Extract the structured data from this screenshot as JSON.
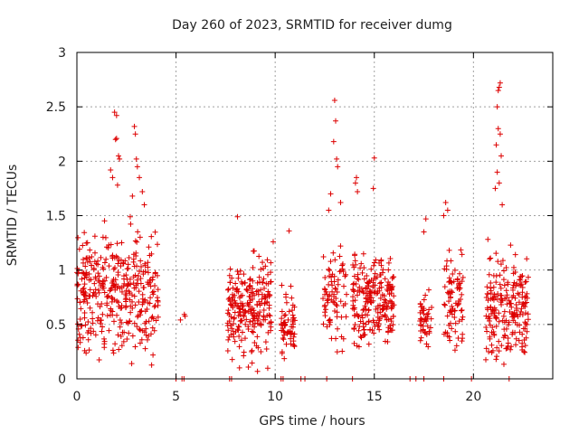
{
  "chart_data": {
    "type": "scatter",
    "title": "Day 260 of 2023, SRMTID for receiver dumg",
    "xlabel": "GPS time / hours",
    "ylabel": "SRMTID / TECUs",
    "xlim": [
      0,
      24
    ],
    "ylim": [
      0,
      3
    ],
    "xticks": [
      0,
      5,
      10,
      15,
      20
    ],
    "xtick_labels": [
      "0",
      "5",
      "10",
      "15",
      "20"
    ],
    "yticks": [
      0,
      0.5,
      1,
      1.5,
      2,
      2.5,
      3
    ],
    "ytick_labels": [
      "0",
      "0.5",
      "1",
      "1.5",
      "2",
      "2.5",
      "3"
    ],
    "grid": true,
    "marker": "+",
    "series": [
      {
        "name": "dumg",
        "color": "#dd0000",
        "clusters": [
          {
            "t_start": 0.0,
            "t_end": 4.1,
            "n": 380,
            "y_min": 0.0,
            "y_max": 1.6
          },
          {
            "t_start": 5.2,
            "t_end": 5.5,
            "n": 3,
            "y_min": 0.45,
            "y_max": 0.65
          },
          {
            "t_start": 7.6,
            "t_end": 9.8,
            "n": 230,
            "y_min": 0.0,
            "y_max": 1.3
          },
          {
            "t_start": 10.3,
            "t_end": 11.0,
            "n": 60,
            "y_min": 0.1,
            "y_max": 0.9
          },
          {
            "t_start": 12.4,
            "t_end": 13.6,
            "n": 80,
            "y_min": 0.15,
            "y_max": 1.4
          },
          {
            "t_start": 13.9,
            "t_end": 16.0,
            "n": 220,
            "y_min": 0.15,
            "y_max": 1.3
          },
          {
            "t_start": 17.3,
            "t_end": 17.9,
            "n": 45,
            "y_min": 0.15,
            "y_max": 0.95
          },
          {
            "t_start": 18.5,
            "t_end": 19.5,
            "n": 80,
            "y_min": 0.1,
            "y_max": 1.3
          },
          {
            "t_start": 20.6,
            "t_end": 22.8,
            "n": 210,
            "y_min": 0.0,
            "y_max": 1.35
          }
        ],
        "outliers": [
          {
            "x": 1.9,
            "y": 2.45
          },
          {
            "x": 2.0,
            "y": 2.42
          },
          {
            "x": 2.0,
            "y": 2.21
          },
          {
            "x": 1.95,
            "y": 2.2
          },
          {
            "x": 2.1,
            "y": 2.05
          },
          {
            "x": 2.15,
            "y": 2.02
          },
          {
            "x": 1.7,
            "y": 1.92
          },
          {
            "x": 1.8,
            "y": 1.85
          },
          {
            "x": 2.05,
            "y": 1.78
          },
          {
            "x": 2.9,
            "y": 2.32
          },
          {
            "x": 2.95,
            "y": 2.25
          },
          {
            "x": 3.0,
            "y": 2.02
          },
          {
            "x": 3.05,
            "y": 1.95
          },
          {
            "x": 3.15,
            "y": 1.85
          },
          {
            "x": 3.3,
            "y": 1.72
          },
          {
            "x": 2.8,
            "y": 1.68
          },
          {
            "x": 3.4,
            "y": 1.6
          },
          {
            "x": 13.0,
            "y": 2.56
          },
          {
            "x": 13.05,
            "y": 2.37
          },
          {
            "x": 12.95,
            "y": 2.18
          },
          {
            "x": 13.1,
            "y": 2.02
          },
          {
            "x": 13.15,
            "y": 1.95
          },
          {
            "x": 12.8,
            "y": 1.7
          },
          {
            "x": 13.3,
            "y": 1.62
          },
          {
            "x": 12.7,
            "y": 1.55
          },
          {
            "x": 14.1,
            "y": 1.85
          },
          {
            "x": 14.05,
            "y": 1.8
          },
          {
            "x": 14.15,
            "y": 1.72
          },
          {
            "x": 15.0,
            "y": 2.03
          },
          {
            "x": 14.95,
            "y": 1.75
          },
          {
            "x": 21.35,
            "y": 2.72
          },
          {
            "x": 21.3,
            "y": 2.68
          },
          {
            "x": 21.25,
            "y": 2.65
          },
          {
            "x": 21.2,
            "y": 2.5
          },
          {
            "x": 21.25,
            "y": 2.3
          },
          {
            "x": 21.35,
            "y": 2.25
          },
          {
            "x": 21.15,
            "y": 2.15
          },
          {
            "x": 21.4,
            "y": 2.05
          },
          {
            "x": 21.2,
            "y": 1.9
          },
          {
            "x": 21.3,
            "y": 1.8
          },
          {
            "x": 21.1,
            "y": 1.75
          },
          {
            "x": 21.45,
            "y": 1.6
          },
          {
            "x": 18.6,
            "y": 1.62
          },
          {
            "x": 18.7,
            "y": 1.55
          },
          {
            "x": 18.5,
            "y": 1.5
          },
          {
            "x": 17.6,
            "y": 1.47
          },
          {
            "x": 17.5,
            "y": 1.35
          },
          {
            "x": 10.7,
            "y": 1.36
          },
          {
            "x": 8.1,
            "y": 1.49
          },
          {
            "x": 9.9,
            "y": 1.26
          }
        ],
        "zero_points": [
          5.0,
          5.3,
          5.4,
          7.7,
          7.8,
          10.3,
          10.4,
          11.3,
          11.5,
          12.6,
          13.9,
          16.8,
          17.1,
          17.5,
          18.5,
          19.9,
          21.8
        ]
      }
    ]
  }
}
